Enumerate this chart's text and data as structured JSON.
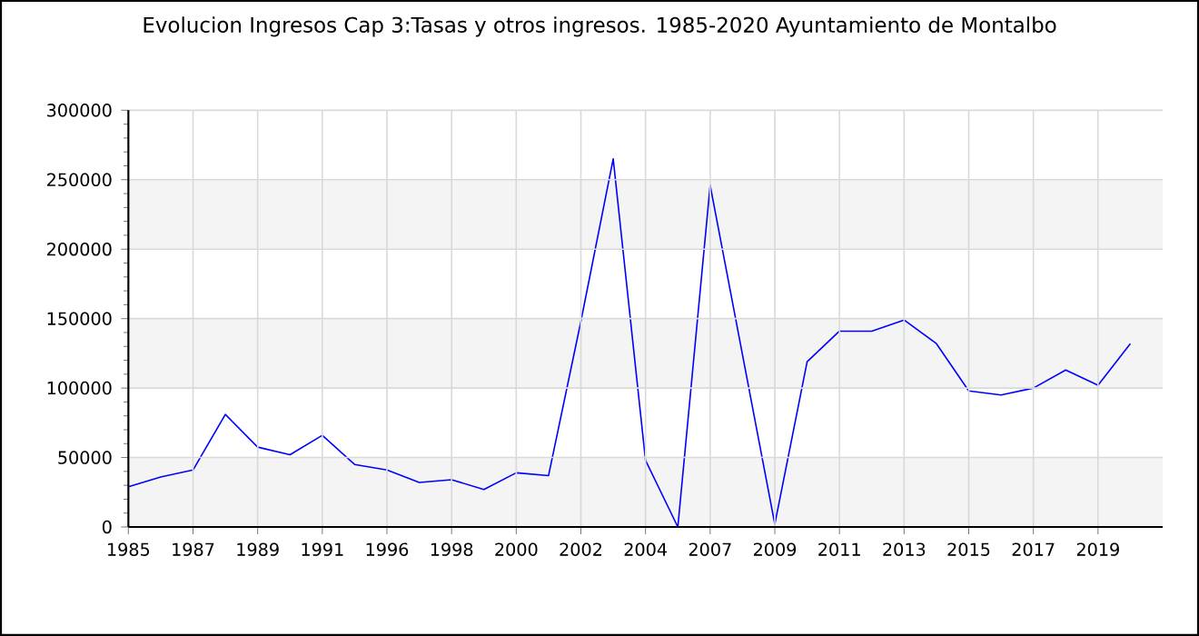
{
  "chart_data": {
    "type": "line",
    "title": "Evolucion Ingresos Cap 3:Tasas y otros ingresos. 1985-2020 Ayuntamiento de Montalbo",
    "categories": [
      "1985",
      null,
      "1987",
      null,
      "1989",
      null,
      "1991",
      null,
      "1996",
      null,
      "1998",
      null,
      "2000",
      null,
      "2002",
      null,
      "2004",
      null,
      "2007",
      null,
      "2009",
      null,
      "2011",
      null,
      "2013",
      null,
      "2015",
      null,
      "2017",
      null,
      "2019",
      null
    ],
    "values": [
      29000,
      36000,
      41000,
      81000,
      57500,
      52000,
      66000,
      45000,
      41000,
      32000,
      34000,
      27000,
      39000,
      37000,
      148000,
      265000,
      48000,
      0,
      246000,
      124000,
      2000,
      119000,
      141000,
      141000,
      149000,
      132000,
      98000,
      95000,
      100000,
      113000,
      102000,
      132000
    ],
    "color": "#0000ff",
    "ylim": [
      0,
      300000
    ],
    "yticks": [
      0,
      50000,
      100000,
      150000,
      200000,
      250000,
      300000
    ],
    "grid": true,
    "marker": "none",
    "bands": [
      {
        "axis": "y",
        "from": 0,
        "to": 50000,
        "color": "#f4f4f4"
      },
      {
        "axis": "y",
        "from": 100000,
        "to": 150000,
        "color": "#f4f4f4"
      },
      {
        "axis": "y",
        "from": 200000,
        "to": 250000,
        "color": "#f4f4f4"
      }
    ]
  }
}
